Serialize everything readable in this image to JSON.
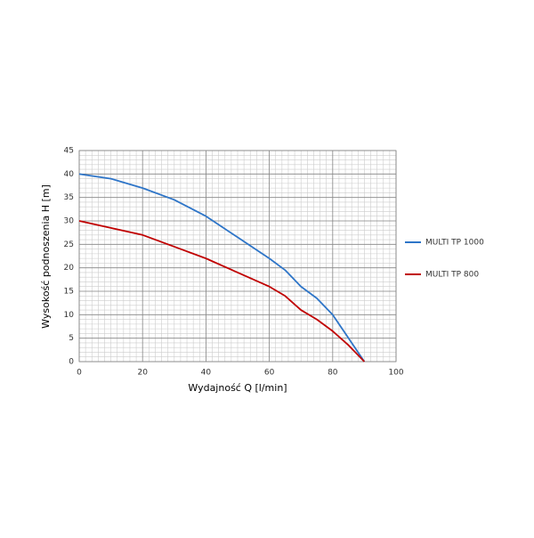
{
  "chart_data": {
    "type": "line",
    "xlabel": "Wydajność Q [l/min]",
    "ylabel": "Wysokość podnoszenia H [m]",
    "x": [
      0,
      10,
      20,
      30,
      40,
      50,
      60,
      65,
      70,
      75,
      80,
      85,
      90
    ],
    "series": [
      {
        "name": "MULTI TP 1000",
        "color": "#2e75c8",
        "values": [
          40,
          39,
          37,
          34.5,
          31,
          26.5,
          22,
          19.5,
          16,
          13.5,
          10,
          5,
          0
        ]
      },
      {
        "name": "MULTI TP 800",
        "color": "#c00000",
        "values": [
          30,
          28.5,
          27,
          24.5,
          22,
          19,
          16,
          14,
          11,
          9,
          6.5,
          3.5,
          0
        ]
      }
    ],
    "xlim": [
      0,
      100
    ],
    "xticks": [
      0,
      20,
      40,
      60,
      80,
      100
    ],
    "ylim": [
      0,
      45
    ],
    "yticks": [
      0,
      5,
      10,
      15,
      20,
      25,
      30,
      35,
      40,
      45
    ],
    "grid": true,
    "minor_xstep": 2,
    "minor_ystep": 1,
    "legend": "right"
  }
}
